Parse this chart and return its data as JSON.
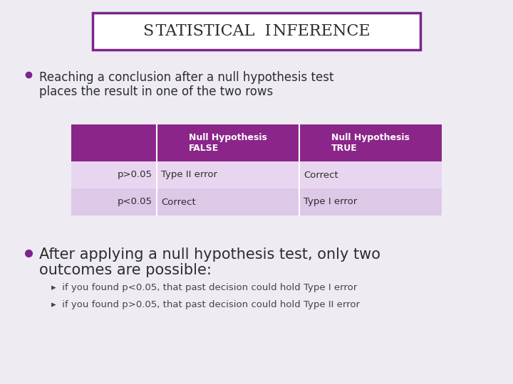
{
  "bg_color": "#eeecf2",
  "title_text": "Statistical Inference",
  "title_box_color": "#ffffff",
  "title_border_color": "#7b2589",
  "title_text_color": "#2d2d2d",
  "bullet_color": "#7b2589",
  "table_header_bg": "#8b2589",
  "table_header_text": "#ffffff",
  "table_row1_bg": "#e8d5f0",
  "table_row2_bg": "#ddc8e8",
  "table_text_color": "#2d2d2d",
  "table_col1_header": "Null Hypothesis\nFALSE",
  "table_col2_header": "Null Hypothesis\nTRUE",
  "table_data": [
    [
      "p>0.05",
      "Type II error",
      "Correct"
    ],
    [
      "p<0.05",
      "Correct",
      "Type I error"
    ]
  ],
  "main_text_color": "#2d2d2d",
  "sub_text_color": "#555555",
  "bullet2_color": "#7b2589",
  "sub_bullet_color": "#444444",
  "title_sc_big": "S",
  "title_sc_rest1": "tatistical ",
  "title_sc_big2": "I",
  "title_sc_rest2": "nference",
  "bullet1_text": "Reaching a conclusion after a null hypothesis test\nplaces the result in one of the two rows",
  "bullet2_line1": "After applying a null hypothesis test, only two",
  "bullet2_line2": "outcomes are possible:",
  "sub_bullet1": "if you found p<0.05, that past decision could hold Type I error",
  "sub_bullet2": "if you found p>0.05, that past decision could hold Type II error"
}
